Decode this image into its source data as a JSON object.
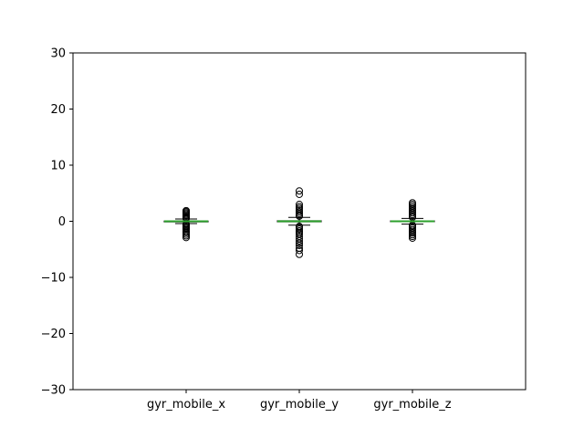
{
  "chart_data": {
    "type": "box",
    "title": "",
    "xlabel": "",
    "ylabel": "",
    "ylim": [
      -30,
      30
    ],
    "yticks": [
      -30,
      -20,
      -10,
      0,
      10,
      20,
      30
    ],
    "grid": false,
    "colors": {
      "box": "#000000",
      "median": "#2ca02c",
      "flier": "#000000"
    },
    "boxes": [
      {
        "category": "gyr_mobile_x",
        "whisker_low": -0.4,
        "q1": -0.05,
        "median": 0.0,
        "q3": 0.05,
        "whisker_high": 0.4,
        "fliers": [
          -2.9,
          -2.6,
          -2.3,
          -2.0,
          -1.8,
          -1.5,
          -1.3,
          -1.1,
          -0.9,
          -0.7,
          -0.5,
          0.5,
          0.7,
          0.9,
          1.1,
          1.3,
          1.5,
          1.7,
          1.9
        ]
      },
      {
        "category": "gyr_mobile_y",
        "whisker_low": -0.7,
        "q1": -0.1,
        "median": 0.0,
        "q3": 0.1,
        "whisker_high": 0.7,
        "fliers": [
          -5.9,
          -5.2,
          -4.8,
          -4.3,
          -3.9,
          -3.5,
          -3.1,
          -2.7,
          -2.3,
          -2.0,
          -1.7,
          -1.4,
          -1.1,
          -0.9,
          0.9,
          1.1,
          1.4,
          1.7,
          2.0,
          2.3,
          2.6,
          3.0,
          4.8,
          5.4
        ]
      },
      {
        "category": "gyr_mobile_z",
        "whisker_low": -0.5,
        "q1": -0.08,
        "median": 0.0,
        "q3": 0.08,
        "whisker_high": 0.5,
        "fliers": [
          -3.0,
          -2.7,
          -2.4,
          -2.1,
          -1.8,
          -1.5,
          -1.2,
          -0.9,
          -0.7,
          0.7,
          0.9,
          1.2,
          1.5,
          1.8,
          2.1,
          2.4,
          2.7,
          3.0,
          3.3
        ]
      }
    ]
  }
}
